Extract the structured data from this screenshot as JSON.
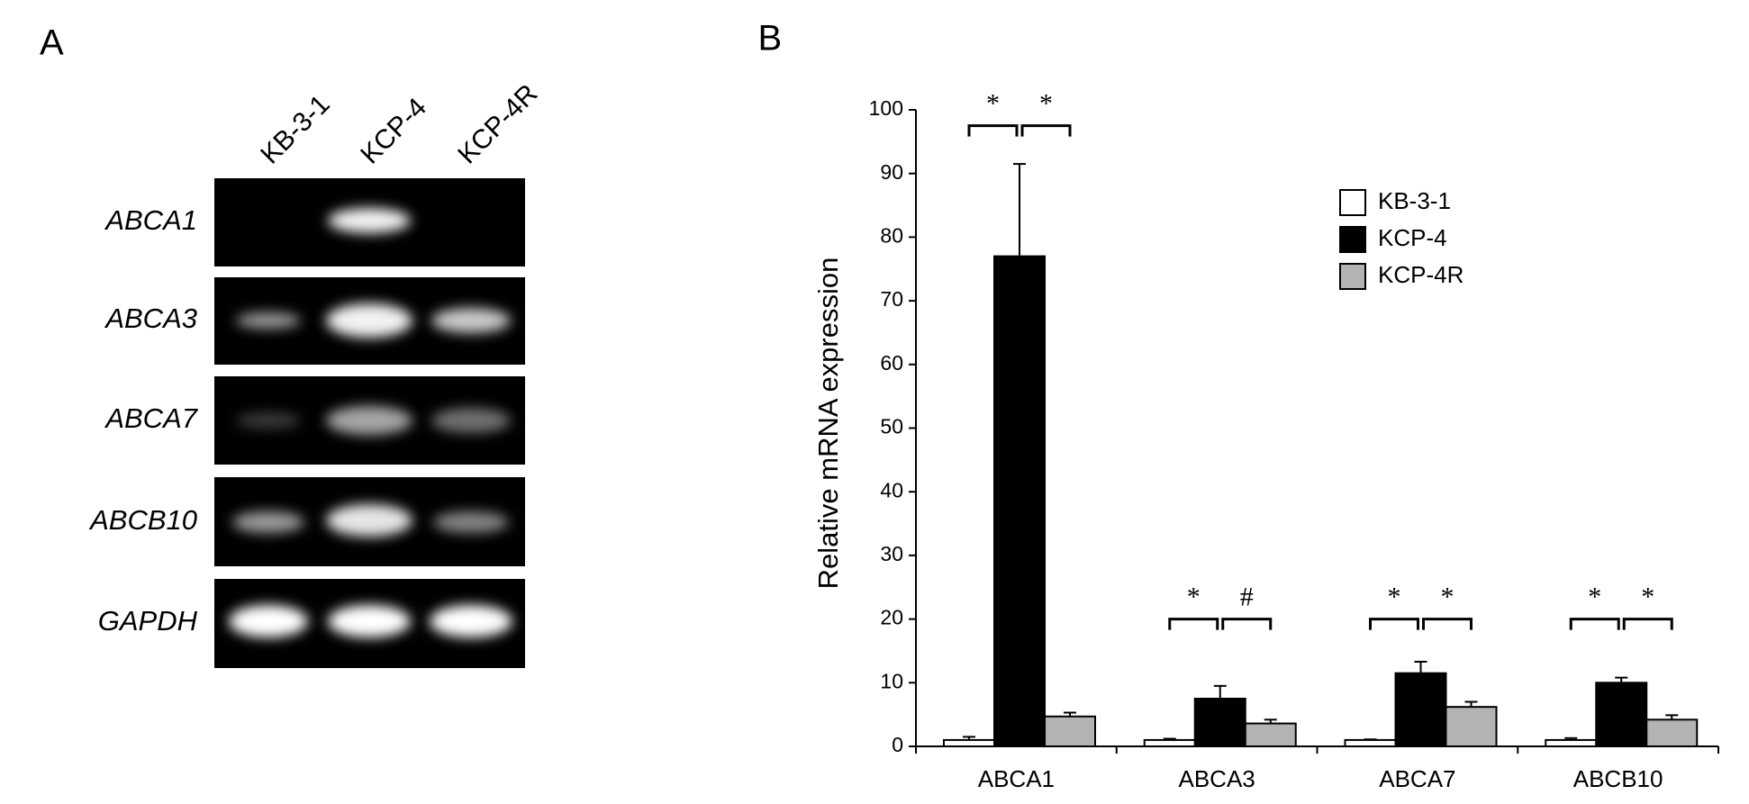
{
  "panel_a": {
    "label": "A",
    "lanes": [
      "KB-3-1",
      "KCP-4",
      "KCP-4R"
    ],
    "genes": [
      "ABCA1",
      "ABCA3",
      "ABCA7",
      "ABCB10",
      "GAPDH"
    ]
  },
  "chart_data": {
    "type": "bar",
    "panel_label": "B",
    "y_label": "Relative mRNA expression",
    "categories": [
      "ABCA1",
      "ABCA3",
      "ABCA7",
      "ABCB10"
    ],
    "series": [
      {
        "name": "KB-3-1",
        "color": "#ffffff",
        "values": [
          1,
          1,
          1,
          1
        ],
        "errors": [
          0.5,
          0.2,
          0.1,
          0.3
        ]
      },
      {
        "name": "KCP-4",
        "color": "#000000",
        "values": [
          77,
          7.5,
          11.5,
          10
        ],
        "errors": [
          14.5,
          2,
          1.8,
          0.8
        ]
      },
      {
        "name": "KCP-4R",
        "color": "#b3b3b3",
        "values": [
          4.7,
          3.6,
          6.2,
          4.2
        ],
        "errors": [
          0.6,
          0.6,
          0.8,
          0.7
        ]
      }
    ],
    "significance": [
      [
        "*",
        "*"
      ],
      [
        "*",
        "#"
      ],
      [
        "*",
        "*"
      ],
      [
        "*",
        "*"
      ]
    ],
    "ylim": [
      0,
      100
    ],
    "yticks": [
      0,
      10,
      20,
      30,
      40,
      50,
      60,
      70,
      80,
      90,
      100
    ],
    "grid": false,
    "legend": "upper right"
  }
}
